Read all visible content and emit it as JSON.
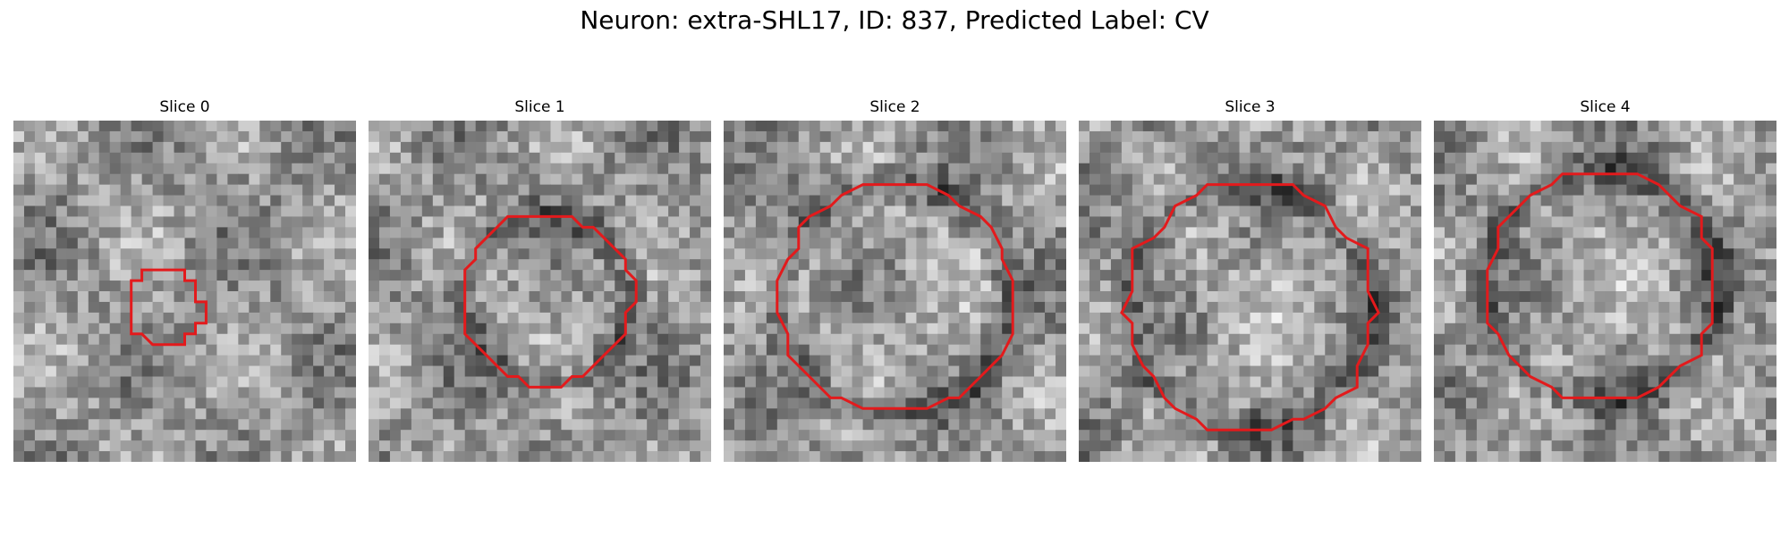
{
  "figure": {
    "title": "Neuron: extra-SHL17, ID: 837, Predicted Label: CV"
  },
  "panels": [
    {
      "title": "Slice 0",
      "seed": 11,
      "center": [
        0.44,
        0.55
      ],
      "radius": 0.11,
      "ring": "none"
    },
    {
      "title": "Slice 1",
      "seed": 23,
      "center": [
        0.52,
        0.52
      ],
      "radius": 0.25,
      "ring": "dark"
    },
    {
      "title": "Slice 2",
      "seed": 37,
      "center": [
        0.5,
        0.52
      ],
      "radius": 0.34,
      "ring": "dark"
    },
    {
      "title": "Slice 3",
      "seed": 41,
      "center": [
        0.5,
        0.55
      ],
      "radius": 0.36,
      "ring": "dark"
    },
    {
      "title": "Slice 4",
      "seed": 59,
      "center": [
        0.49,
        0.48
      ],
      "radius": 0.34,
      "ring": "dark"
    }
  ],
  "contour_color": "#e31a1c"
}
